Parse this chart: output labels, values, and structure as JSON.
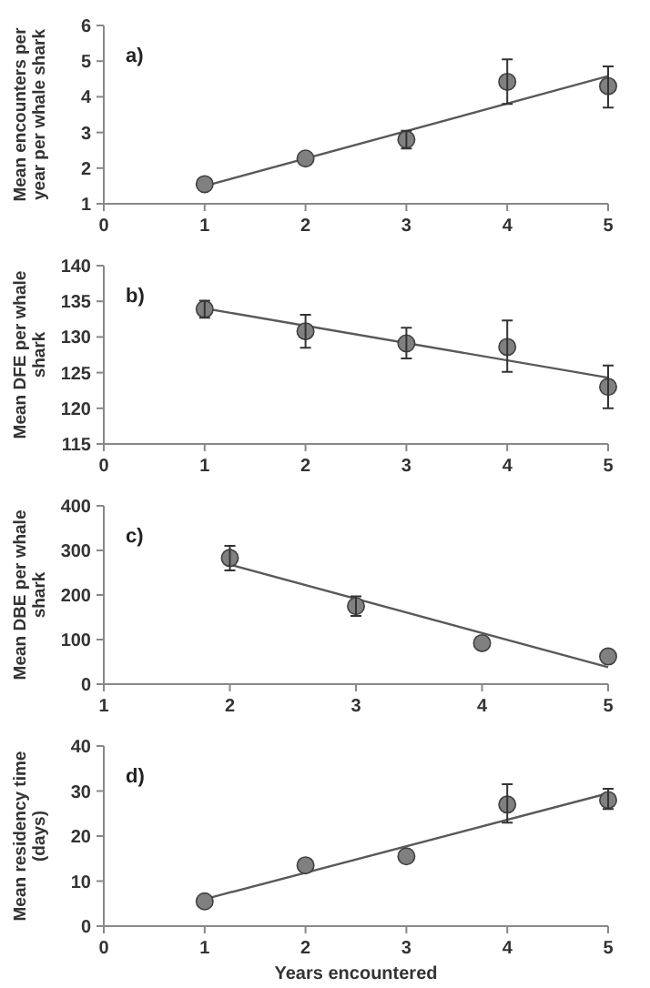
{
  "chart_data": [
    {
      "type": "scatter",
      "ylabel": "Mean encounters per year per whale shark",
      "annotations": [
        "a)"
      ],
      "xlim": [
        0,
        5
      ],
      "xticks": [
        0,
        1,
        2,
        3,
        4,
        5
      ],
      "ylim": [
        1,
        6
      ],
      "yticks": [
        1,
        2,
        3,
        4,
        5,
        6
      ],
      "grid": false,
      "series": [
        {
          "color": "#808080",
          "marker": "circle",
          "x": [
            1,
            2,
            3,
            4,
            5
          ],
          "values": [
            1.55,
            2.27,
            2.8,
            4.42,
            4.3
          ],
          "errors": [
            null,
            null,
            0.25,
            [
              3.8,
              5.05
            ],
            [
              3.7,
              4.85
            ]
          ]
        },
        {
          "type": "line",
          "color": "#595959",
          "x": [
            1,
            5
          ],
          "values": [
            1.5,
            4.58
          ]
        }
      ]
    },
    {
      "type": "scatter",
      "ylabel": "Mean DFE per whale shark",
      "annotations": [
        "b)"
      ],
      "xlim": [
        0,
        5
      ],
      "xticks": [
        0,
        1,
        2,
        3,
        4,
        5
      ],
      "ylim": [
        115,
        140
      ],
      "yticks": [
        115,
        120,
        125,
        130,
        135,
        140
      ],
      "grid": false,
      "series": [
        {
          "color": "#808080",
          "marker": "circle",
          "x": [
            1,
            2,
            3,
            4,
            5
          ],
          "values": [
            133.9,
            130.8,
            129.1,
            128.6,
            123
          ],
          "errors": [
            1.2,
            [
              128.5,
              133.1
            ],
            [
              127,
              131.3
            ],
            [
              125.1,
              132.3
            ],
            [
              120,
              126
            ]
          ]
        },
        {
          "type": "line",
          "color": "#595959",
          "x": [
            1,
            5
          ],
          "values": [
            134,
            124.3
          ]
        }
      ]
    },
    {
      "type": "scatter",
      "ylabel": "Mean DBE per whale shark",
      "annotations": [
        "c)"
      ],
      "xlim": [
        1,
        5
      ],
      "xticks": [
        1,
        2,
        3,
        4,
        5
      ],
      "ylim": [
        0,
        400
      ],
      "yticks": [
        0,
        100,
        200,
        300,
        400
      ],
      "grid": false,
      "series": [
        {
          "color": "#808080",
          "marker": "circle",
          "x": [
            2,
            3,
            4,
            5
          ],
          "values": [
            283,
            175,
            92,
            62
          ],
          "errors": [
            [
              255,
              310
            ],
            22,
            null,
            null
          ]
        },
        {
          "type": "line",
          "color": "#595959",
          "x": [
            2,
            5
          ],
          "values": [
            268,
            38
          ]
        }
      ]
    },
    {
      "type": "scatter",
      "ylabel": "Mean residency time (days)",
      "xlabel": "Years encountered",
      "annotations": [
        "d)"
      ],
      "xlim": [
        0,
        5
      ],
      "xticks": [
        0,
        1,
        2,
        3,
        4,
        5
      ],
      "ylim": [
        0,
        40
      ],
      "yticks": [
        0,
        10,
        20,
        30,
        40
      ],
      "grid": false,
      "series": [
        {
          "color": "#808080",
          "marker": "circle",
          "x": [
            1,
            2,
            3,
            4,
            5
          ],
          "values": [
            5.5,
            13.5,
            15.5,
            27,
            28
          ],
          "errors": [
            null,
            null,
            null,
            [
              23,
              31.5
            ],
            [
              26,
              30.5
            ]
          ]
        },
        {
          "type": "line",
          "color": "#595959",
          "x": [
            1,
            5
          ],
          "values": [
            6,
            29.5
          ]
        }
      ]
    }
  ]
}
